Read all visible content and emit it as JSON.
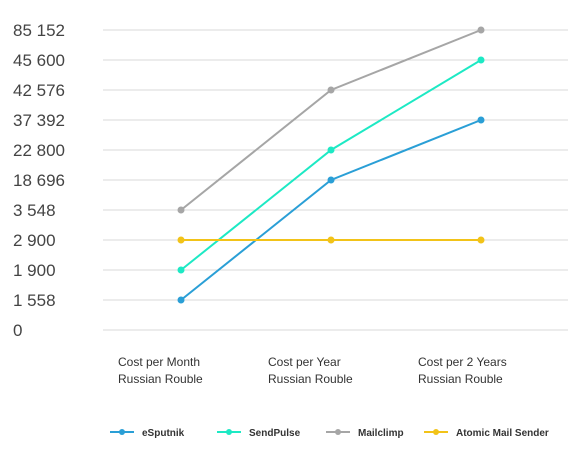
{
  "chart_data": {
    "type": "line",
    "y_tick_labels": [
      "0",
      "1 558",
      "1 900",
      "2 900",
      "3 548",
      "18 696",
      "22 800",
      "37 392",
      "42 576",
      "45 600",
      "85 152"
    ],
    "categories": [
      [
        "Cost per Month",
        "Russian Rouble"
      ],
      [
        "Cost per Year",
        "Russian Rouble"
      ],
      [
        "Cost per 2 Years",
        "Russian Rouble"
      ]
    ],
    "series": [
      {
        "name": "eSputnik",
        "color": "#2a9fd6",
        "values": [
          1558,
          18696,
          37392
        ]
      },
      {
        "name": "SendPulse",
        "color": "#1de9c4",
        "values": [
          1900,
          22800,
          45600
        ]
      },
      {
        "name": "Mailclimp",
        "color": "#a6a6a6",
        "values": [
          3548,
          42576,
          85152
        ]
      },
      {
        "name": "Atomic Mail Sender",
        "color": "#f2c318",
        "values": [
          2900,
          2900,
          2900
        ]
      }
    ],
    "grid": true,
    "legend_position": "bottom"
  }
}
